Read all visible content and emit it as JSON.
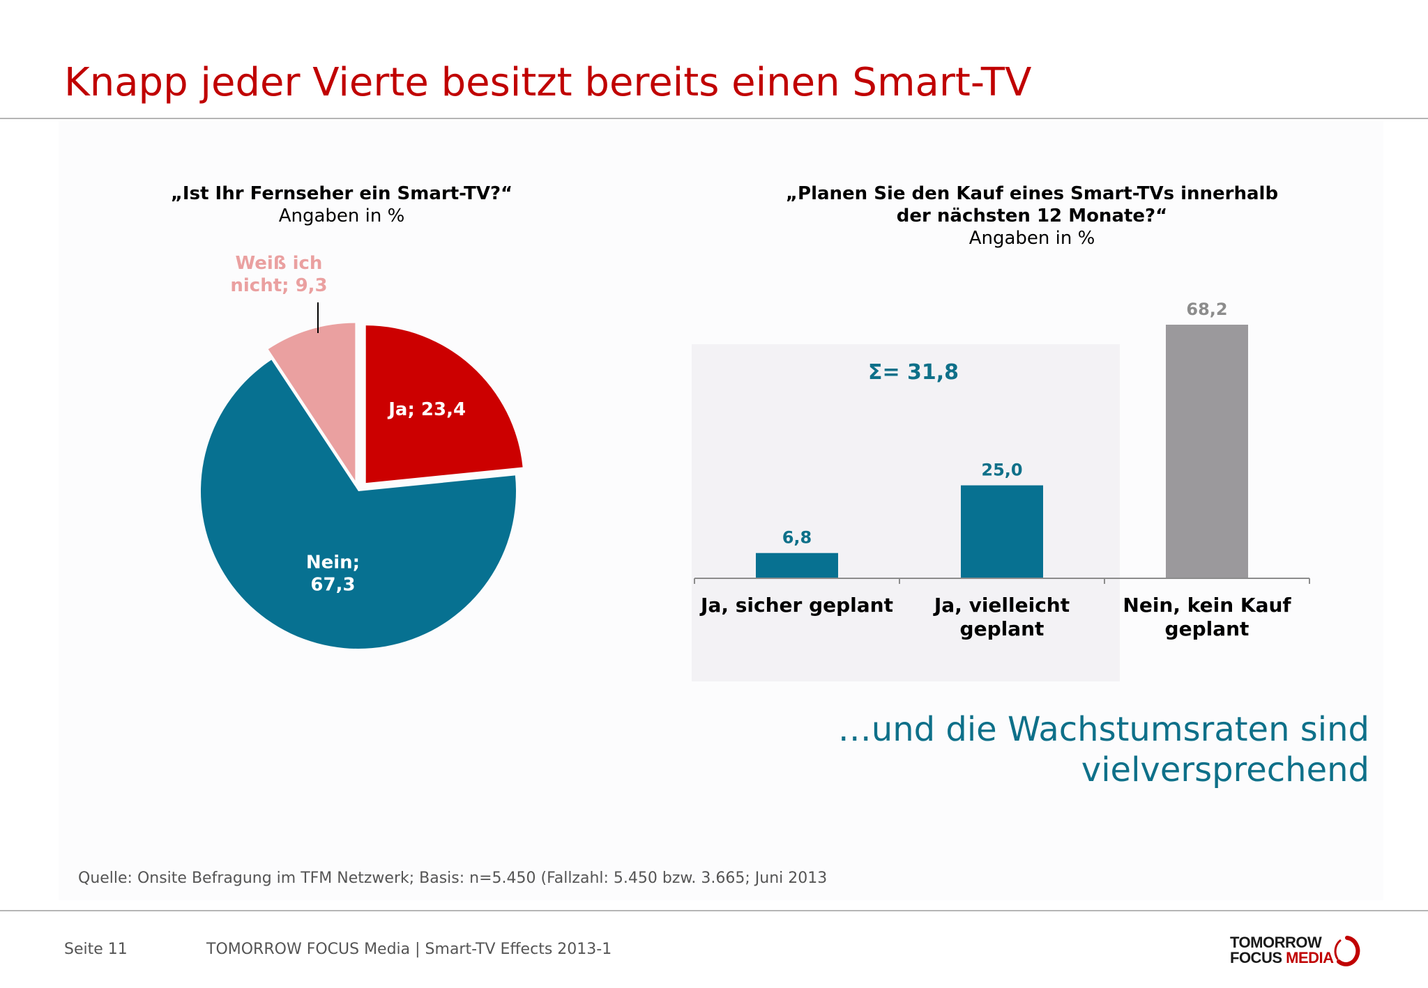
{
  "slide": {
    "title": "Knapp jeder Vierte besitzt bereits einen Smart-TV",
    "tagline_line1": "…und die Wachstumsraten sind",
    "tagline_line2": "vielversprechend",
    "source": "Quelle: Onsite Befragung im TFM Netzwerk; Basis: n=5.450 (Fallzahl: 5.450  bzw. 3.665; Juni 2013",
    "page_label": "Seite 11",
    "footer_text": "TOMORROW FOCUS Media  |  Smart-TV Effects 2013-1",
    "logo_line1": "TOMORROW",
    "logo_line2a": "FOCUS ",
    "logo_line2b": "MEDIA"
  },
  "chart_data": [
    {
      "type": "pie",
      "title": "„Ist Ihr Fernseher ein Smart-TV?“",
      "subtitle": "Angaben in %",
      "slices": [
        {
          "label_line1": "Ja; 23,4",
          "label_line2": "",
          "name": "Ja",
          "value": 23.4,
          "color": "#cc0000",
          "label_color": "#ffffff",
          "exploded": true
        },
        {
          "label_line1": "Nein;",
          "label_line2": "67,3",
          "name": "Nein",
          "value": 67.3,
          "color": "#077191",
          "label_color": "#ffffff",
          "exploded": false
        },
        {
          "label_line1": "Weiß ich",
          "label_line2": "nicht; 9,3",
          "name": "Weiß ich nicht",
          "value": 9.3,
          "color": "#eaa0a0",
          "label_color": "#eaa0a0",
          "exploded": true
        }
      ]
    },
    {
      "type": "bar",
      "title_line1": "„Planen Sie den Kauf eines Smart-TVs innerhalb",
      "title_line2": "der nächsten 12 Monate?“",
      "subtitle": "Angaben in %",
      "categories": [
        {
          "line1": "Ja, sicher geplant",
          "line2": ""
        },
        {
          "line1": "Ja, vielleicht",
          "line2": "geplant"
        },
        {
          "line1": "Nein, kein Kauf",
          "line2": "geplant"
        }
      ],
      "values": [
        6.8,
        25.0,
        68.2
      ],
      "value_labels": [
        "6,8",
        "25,0",
        "68,2"
      ],
      "colors": [
        "#077191",
        "#077191",
        "#9b999c"
      ],
      "label_colors": [
        "#0e7089",
        "#0e7089",
        "#8c8c8c"
      ],
      "ylim": [
        0,
        68.2
      ],
      "sum_label": "Σ= 31,8",
      "highlight_color": "#f3f2f5"
    }
  ]
}
